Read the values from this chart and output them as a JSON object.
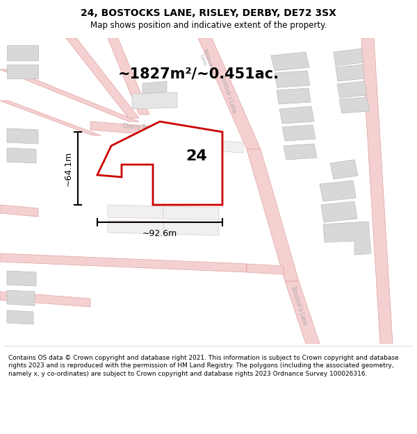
{
  "title": "24, BOSTOCKS LANE, RISLEY, DERBY, DE72 3SX",
  "subtitle": "Map shows position and indicative extent of the property.",
  "area_text": "~1827m²/~0.451ac.",
  "label_number": "24",
  "dim_width": "~92.6m",
  "dim_height": "~64.1m",
  "footer": "Contains OS data © Crown copyright and database right 2021. This information is subject to Crown copyright and database rights 2023 and is reproduced with the permission of HM Land Registry. The polygons (including the associated geometry, namely x, y co-ordinates) are subject to Crown copyright and database rights 2023 Ordnance Survey 100026316.",
  "bg_color": "#ffffff",
  "map_bg": "#f0f0f0",
  "road_color": "#f5d0d0",
  "road_edge_color": "#e0a0a0",
  "building_fill": "#d8d8d8",
  "building_edge": "#bbbbbb",
  "highlight_color": "#cc0000",
  "highlight_fill": "#ffffff",
  "dim_color": "#000000",
  "title_fontsize": 10,
  "subtitle_fontsize": 8.5,
  "area_fontsize": 15,
  "number_fontsize": 16,
  "dim_fontsize": 9,
  "footer_fontsize": 6.5,
  "road_label_color": "#aaaaaa",
  "road_label_size": 5.5
}
